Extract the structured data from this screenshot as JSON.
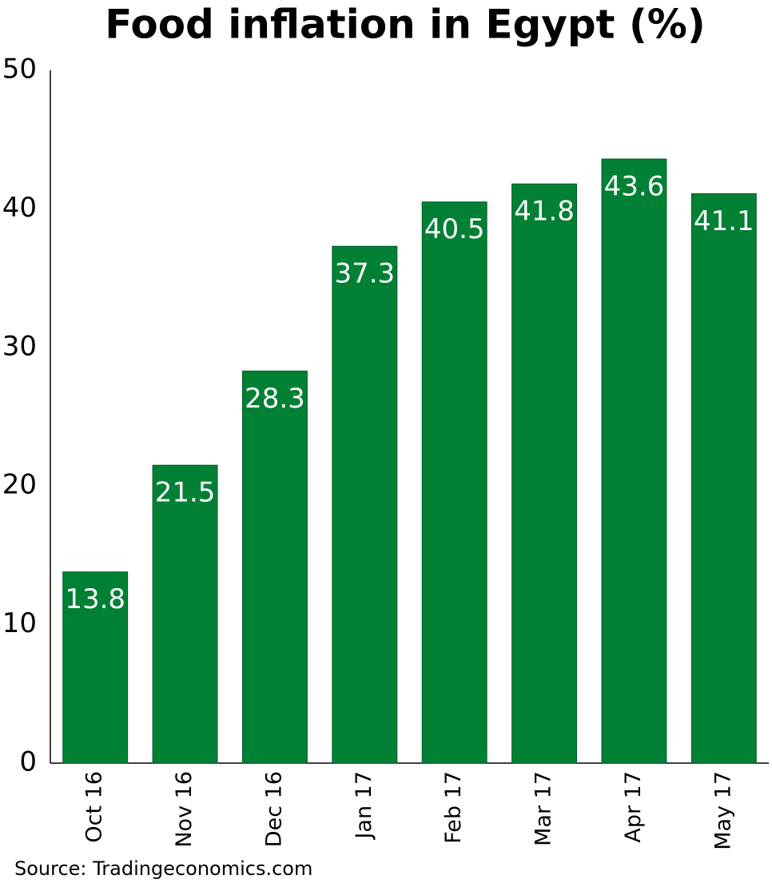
{
  "chart_data": {
    "type": "bar",
    "title": "Food inflation in Egypt (%)",
    "categories": [
      "Oct 16",
      "Nov 16",
      "Dec 16",
      "Jan 17",
      "Feb 17",
      "Mar 17",
      "Apr 17",
      "May 17"
    ],
    "values": [
      13.8,
      21.5,
      28.3,
      37.3,
      40.5,
      41.8,
      43.6,
      41.1
    ],
    "color": "#008035",
    "ylim": [
      0,
      50
    ],
    "yticks": [
      0,
      10,
      20,
      30,
      40,
      50
    ],
    "grid": false,
    "source": "Source: Tradingeconomics.com"
  }
}
